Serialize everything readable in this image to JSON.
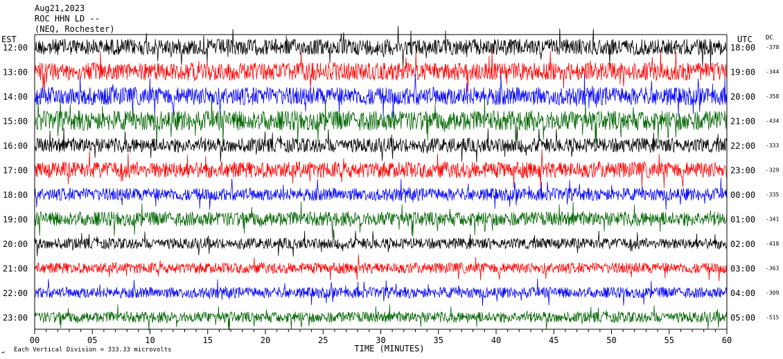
{
  "header": {
    "date": "Aug21,2023",
    "station": "ROC HHN LD --",
    "network": "(NEQ, Rochester)"
  },
  "labels": {
    "left_timezone": "EST",
    "right_timezone": "UTC",
    "dc_header": "DC",
    "xlabel": "TIME (MINUTES)",
    "scale_note": "Each Vertical Division =  333.33 microvolts"
  },
  "colors": [
    "#000000",
    "#ff0000",
    "#0000ff",
    "#006400"
  ],
  "chart_data": {
    "type": "line",
    "title": "Aug21,2023 ROC HHN LD -- (NEQ, Rochester)",
    "xlabel": "TIME (MINUTES)",
    "xlim": [
      0,
      60
    ],
    "x_ticks": [
      "00",
      "05",
      "10",
      "15",
      "20",
      "25",
      "30",
      "35",
      "40",
      "45",
      "50",
      "55",
      "60"
    ],
    "grid": false,
    "series": [
      {
        "est": "12:00",
        "utc": "18:00",
        "dc": "-378",
        "color": "#000000",
        "amplitude": 0.9
      },
      {
        "est": "13:00",
        "utc": "19:00",
        "dc": "-344",
        "color": "#ff0000",
        "amplitude": 1.0
      },
      {
        "est": "14:00",
        "utc": "20:00",
        "dc": "-358",
        "color": "#0000ff",
        "amplitude": 1.0
      },
      {
        "est": "15:00",
        "utc": "21:00",
        "dc": "-434",
        "color": "#006400",
        "amplitude": 1.1
      },
      {
        "est": "16:00",
        "utc": "22:00",
        "dc": "-333",
        "color": "#000000",
        "amplitude": 0.8
      },
      {
        "est": "17:00",
        "utc": "23:00",
        "dc": "-329",
        "color": "#ff0000",
        "amplitude": 0.9
      },
      {
        "est": "18:00",
        "utc": "00:00",
        "dc": "-335",
        "color": "#0000ff",
        "amplitude": 0.7
      },
      {
        "est": "19:00",
        "utc": "01:00",
        "dc": "-341",
        "color": "#006400",
        "amplitude": 0.8
      },
      {
        "est": "20:00",
        "utc": "02:00",
        "dc": "-418",
        "color": "#000000",
        "amplitude": 0.6
      },
      {
        "est": "21:00",
        "utc": "03:00",
        "dc": "-363",
        "color": "#ff0000",
        "amplitude": 0.6
      },
      {
        "est": "22:00",
        "utc": "04:00",
        "dc": "-309",
        "color": "#0000ff",
        "amplitude": 0.6
      },
      {
        "est": "23:00",
        "utc": "05:00",
        "dc": "-515",
        "color": "#006400",
        "amplitude": 0.6
      }
    ]
  }
}
